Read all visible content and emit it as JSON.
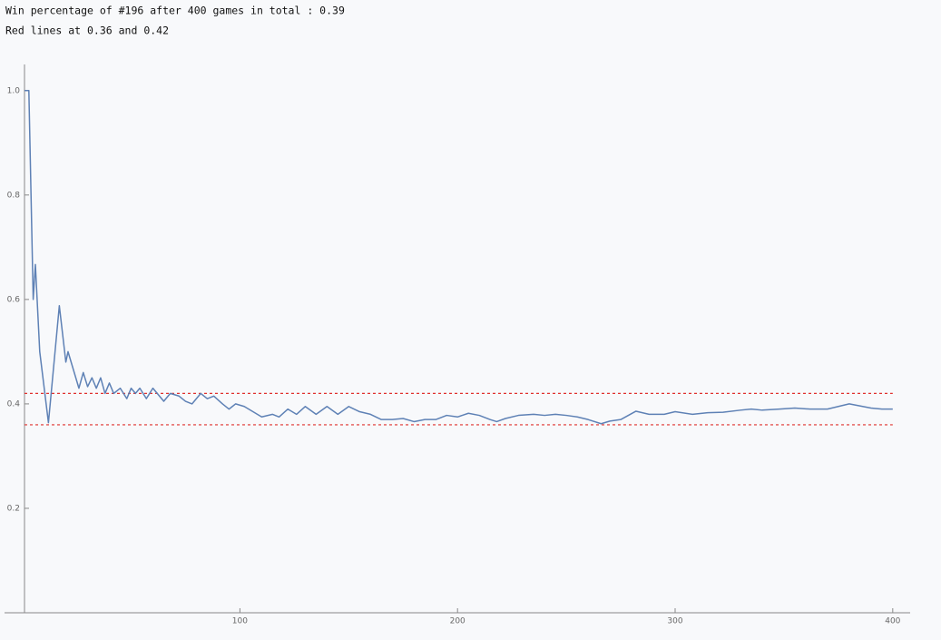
{
  "chart_data": {
    "type": "line",
    "title": "Win percentage of #196 after 400 games in total : 0.39",
    "subtitle": "Red lines at 0.36 and 0.42",
    "x": [
      1,
      2,
      3,
      5,
      6,
      8,
      12,
      17,
      20,
      21,
      26,
      28,
      30,
      32,
      34,
      36,
      38,
      40,
      42,
      45,
      48,
      50,
      52,
      54,
      57,
      60,
      62,
      65,
      68,
      72,
      75,
      78,
      82,
      85,
      88,
      92,
      95,
      98,
      102,
      106,
      110,
      115,
      118,
      122,
      126,
      130,
      135,
      140,
      145,
      150,
      155,
      160,
      165,
      170,
      175,
      180,
      185,
      190,
      195,
      200,
      205,
      210,
      215,
      218,
      222,
      228,
      235,
      240,
      245,
      250,
      255,
      260,
      266,
      270,
      275,
      282,
      288,
      295,
      300,
      308,
      315,
      322,
      330,
      335,
      340,
      348,
      355,
      362,
      370,
      380,
      390,
      395,
      400
    ],
    "series": [
      {
        "name": "Win percentage",
        "color": "#5e81b5",
        "values": [
          1,
          1,
          1,
          0.6,
          0.667,
          0.5,
          0.364,
          0.588,
          0.48,
          0.5,
          0.43,
          0.46,
          0.433,
          0.45,
          0.43,
          0.45,
          0.42,
          0.44,
          0.42,
          0.43,
          0.41,
          0.43,
          0.42,
          0.43,
          0.41,
          0.43,
          0.42,
          0.405,
          0.42,
          0.415,
          0.405,
          0.4,
          0.42,
          0.41,
          0.415,
          0.4,
          0.39,
          0.4,
          0.395,
          0.385,
          0.375,
          0.38,
          0.375,
          0.39,
          0.38,
          0.395,
          0.38,
          0.395,
          0.38,
          0.395,
          0.385,
          0.38,
          0.37,
          0.37,
          0.372,
          0.366,
          0.37,
          0.37,
          0.378,
          0.375,
          0.382,
          0.378,
          0.37,
          0.366,
          0.372,
          0.378,
          0.38,
          0.378,
          0.38,
          0.378,
          0.375,
          0.37,
          0.362,
          0.367,
          0.37,
          0.386,
          0.38,
          0.38,
          0.385,
          0.38,
          0.383,
          0.384,
          0.388,
          0.39,
          0.388,
          0.39,
          0.392,
          0.39,
          0.39,
          0.4,
          0.392,
          0.39,
          0.39
        ]
      }
    ],
    "reference_lines": [
      {
        "value": 0.36,
        "color": "#e0312e"
      },
      {
        "value": 0.42,
        "color": "#e0312e"
      }
    ],
    "xlim": [
      1,
      408
    ],
    "ylim": [
      0,
      1.05
    ],
    "xticks": [
      100,
      200,
      300,
      400
    ],
    "yticks": [
      0.2,
      0.4,
      0.6,
      0.8,
      {
        "value": 1,
        "label": "1.0"
      }
    ]
  }
}
